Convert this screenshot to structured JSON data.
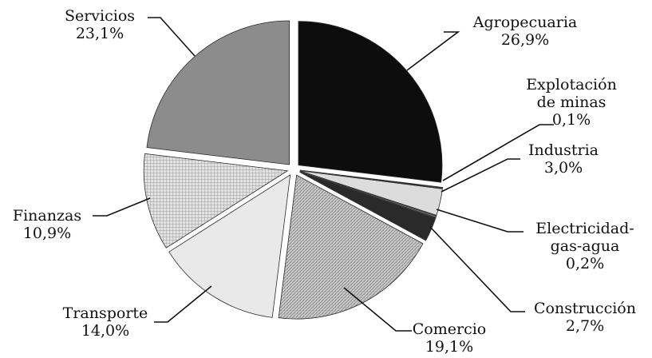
{
  "chart_data": {
    "type": "pie",
    "title": "",
    "slices": [
      {
        "label": [
          "Agropecuaria"
        ],
        "value_text": "26,9%",
        "value": 26.9,
        "fill": "#0d0d0d"
      },
      {
        "label": [
          "Explotación",
          "de minas"
        ],
        "value_text": "0,1%",
        "value": 0.1,
        "fill": "#5a5a5a"
      },
      {
        "label": [
          "Industria"
        ],
        "value_text": "3,0%",
        "value": 3.0,
        "fill": "#dcdcdc"
      },
      {
        "label": [
          "Electricidad-",
          "gas-agua"
        ],
        "value_text": "0,2%",
        "value": 0.2,
        "fill": "#6e6e6e"
      },
      {
        "label": [
          "Construcción"
        ],
        "value_text": "2,7%",
        "value": 2.7,
        "fill": "#2a2a2a"
      },
      {
        "label": [
          "Comercio"
        ],
        "value_text": "19,1%",
        "value": 19.1,
        "fill": "url(#pat-comercio)"
      },
      {
        "label": [
          "Transporte"
        ],
        "value_text": "14,0%",
        "value": 14.0,
        "fill": "#e9e9e9"
      },
      {
        "label": [
          "Finanzas"
        ],
        "value_text": "10,9%",
        "value": 10.9,
        "fill": "url(#pat-finanzas)"
      },
      {
        "label": [
          "Servicios"
        ],
        "value_text": "23,1%",
        "value": 23.1,
        "fill": "#8c8c8c"
      }
    ]
  }
}
